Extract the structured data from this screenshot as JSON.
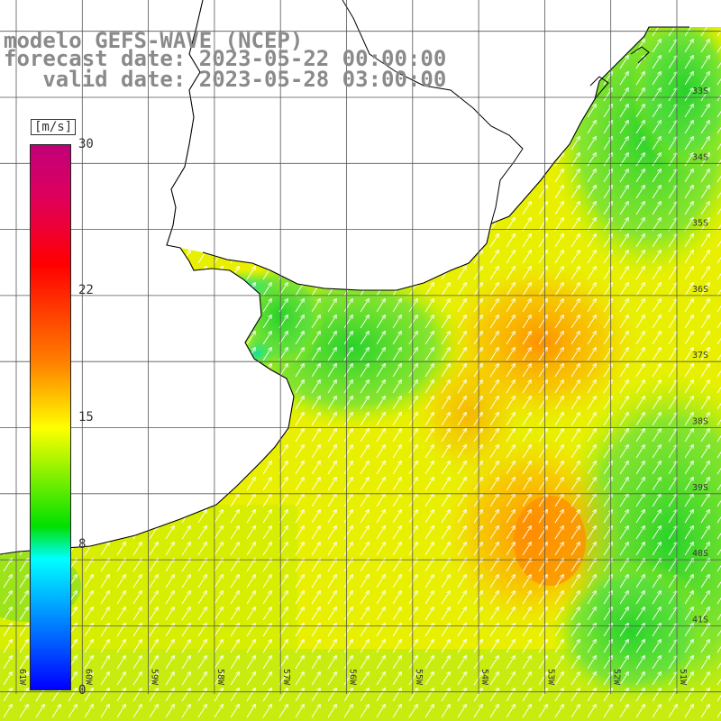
{
  "title": {
    "line1": "modelo GEFS-WAVE (NCEP)",
    "line2": "forecast date: 2023-05-22 00:00:00",
    "line3": "   valid date: 2023-05-28 03:00:00"
  },
  "colorbar": {
    "unit": "[m/s]",
    "ticks": [
      {
        "value": 30,
        "label": "30"
      },
      {
        "value": 22,
        "label": "22"
      },
      {
        "value": 15,
        "label": "15"
      },
      {
        "value": 8,
        "label": "8"
      },
      {
        "value": 0,
        "label": "0"
      }
    ],
    "min": 0,
    "max": 30
  },
  "map": {
    "variable": "wind speed",
    "lon_range": [
      -61.3,
      -50.2
    ],
    "lat_range": [
      -41.5,
      -31.0
    ],
    "lon_labels": [
      "61W",
      "60W",
      "59W",
      "58W",
      "57W",
      "56W",
      "55W",
      "54W",
      "53W",
      "52W",
      "51W"
    ],
    "lat_labels": [
      "33S",
      "34S",
      "35S",
      "36S",
      "37S",
      "38S",
      "39S",
      "40S",
      "41S"
    ],
    "wind_direction": "from SW (arrows pointing NE)"
  },
  "colors": {
    "land": "#ffffff",
    "grid": "#555555",
    "title": "#8a8a8a",
    "arrow": "#ffffff"
  }
}
